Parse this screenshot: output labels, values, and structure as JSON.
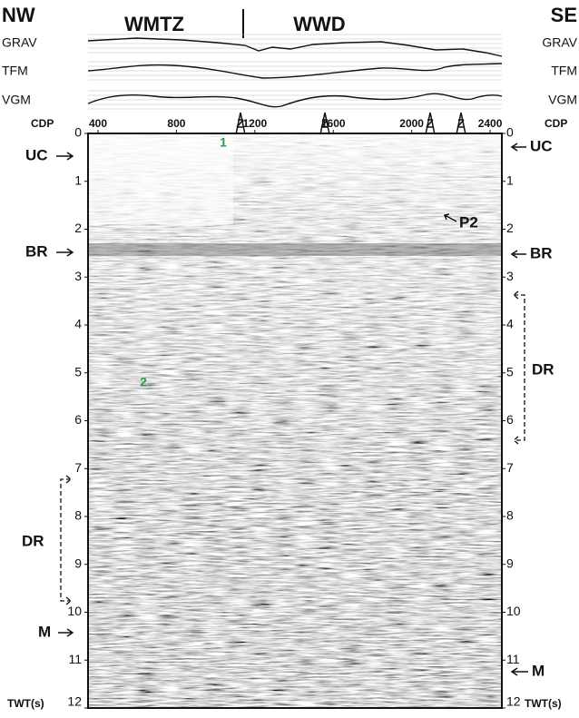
{
  "header": {
    "left": "NW",
    "right": "SE",
    "zones": [
      "WMTZ",
      "WWD"
    ]
  },
  "profiles": [
    "GRAV",
    "TFM",
    "VGM"
  ],
  "cdp_axis": {
    "label": "CDP",
    "xlim": [
      349,
      2460
    ],
    "ticks": [
      400,
      800,
      1200,
      1600,
      2000,
      2400
    ]
  },
  "twt_axis": {
    "label": "TWT(s)",
    "ylim": [
      0,
      12
    ],
    "ticks": [
      0,
      1,
      2,
      3,
      4,
      5,
      6,
      7,
      8,
      9,
      10,
      11,
      12
    ]
  },
  "annotations": {
    "left": {
      "uc": "UC",
      "br": "BR",
      "dr": "DR",
      "m": "M"
    },
    "right": {
      "uc": "UC",
      "p2": "P2",
      "br": "BR",
      "dr": "DR",
      "m": "M"
    },
    "markers": [
      "1",
      "2"
    ]
  }
}
